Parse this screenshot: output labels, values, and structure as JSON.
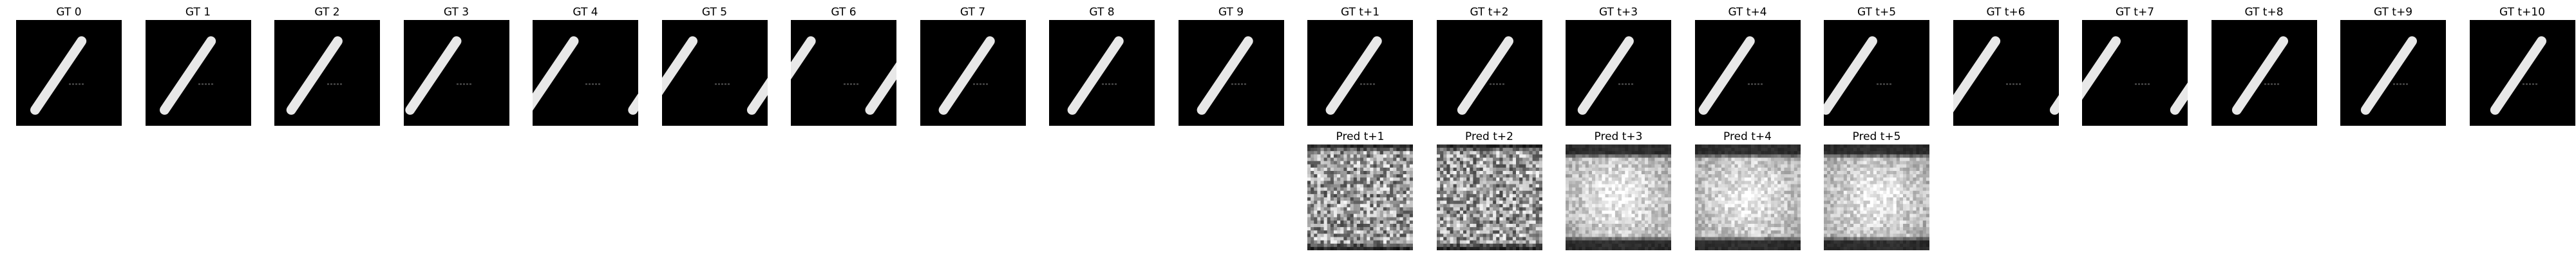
{
  "panels": [
    {
      "title": "GT 0",
      "kind": "digit",
      "row": 0,
      "col": 0
    },
    {
      "title": "GT 1",
      "kind": "digit",
      "row": 0,
      "col": 1
    },
    {
      "title": "GT 2",
      "kind": "digit",
      "row": 0,
      "col": 2
    },
    {
      "title": "GT 3",
      "kind": "digit",
      "row": 0,
      "col": 3
    },
    {
      "title": "GT 4",
      "kind": "digit",
      "row": 0,
      "col": 4
    },
    {
      "title": "GT 5",
      "kind": "digit",
      "row": 0,
      "col": 5
    },
    {
      "title": "GT 6",
      "kind": "digit",
      "row": 0,
      "col": 6
    },
    {
      "title": "GT 7",
      "kind": "digit",
      "row": 0,
      "col": 7
    },
    {
      "title": "GT 8",
      "kind": "digit",
      "row": 0,
      "col": 8
    },
    {
      "title": "GT 9",
      "kind": "digit",
      "row": 0,
      "col": 9
    },
    {
      "title": "GT t+1",
      "kind": "digit",
      "row": 0,
      "col": 10
    },
    {
      "title": "GT t+2",
      "kind": "digit",
      "row": 0,
      "col": 11
    },
    {
      "title": "GT t+3",
      "kind": "digit",
      "row": 0,
      "col": 12
    },
    {
      "title": "GT t+4",
      "kind": "digit",
      "row": 0,
      "col": 13
    },
    {
      "title": "GT t+5",
      "kind": "digit",
      "row": 0,
      "col": 14
    },
    {
      "title": "GT t+6",
      "kind": "digit",
      "row": 0,
      "col": 15
    },
    {
      "title": "GT t+7",
      "kind": "digit",
      "row": 0,
      "col": 16
    },
    {
      "title": "GT t+8",
      "kind": "digit",
      "row": 0,
      "col": 17
    },
    {
      "title": "GT t+9",
      "kind": "digit",
      "row": 0,
      "col": 18
    },
    {
      "title": "GT t+10",
      "kind": "digit",
      "row": 0,
      "col": 19
    },
    {
      "title": "Pred t+1",
      "kind": "noise",
      "row": 1,
      "col": 10
    },
    {
      "title": "Pred t+2",
      "kind": "noise",
      "row": 1,
      "col": 11
    },
    {
      "title": "Pred t+3",
      "kind": "noise",
      "row": 1,
      "col": 12
    },
    {
      "title": "Pred t+4",
      "kind": "noise",
      "row": 1,
      "col": 13
    },
    {
      "title": "Pred t+5",
      "kind": "noise",
      "row": 1,
      "col": 14
    }
  ]
}
